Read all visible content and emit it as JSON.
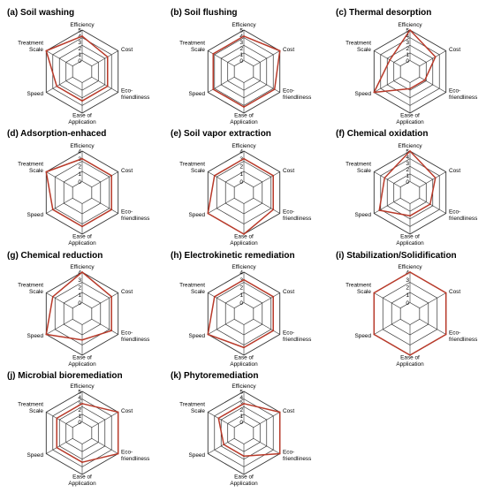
{
  "chart_data": [
    {
      "type": "radar",
      "title": "(a) Soil washing",
      "axes": [
        "Efficiency",
        "Cost",
        "Eco-|friendliness",
        "Ease of|Application",
        "Speed",
        "Treatment|Scale"
      ],
      "ticks": [
        "0",
        "1",
        "2",
        "3",
        "4",
        "5"
      ],
      "range": [
        0,
        5
      ],
      "grid_rings": 4,
      "series": [
        {
          "values": [
            4,
            3,
            3,
            3,
            3,
            5
          ]
        }
      ],
      "colors": {
        "series": "#b83a2a",
        "grid": "#333333"
      }
    },
    {
      "type": "radar",
      "title": "(b) Soil flushing",
      "axes": [
        "Efficiency",
        "Cost",
        "Eco-|friendliness",
        "Ease of|Application",
        "Speed",
        "Treatment|Scale"
      ],
      "ticks": [
        "0",
        "1",
        "2",
        "3",
        "4",
        "5"
      ],
      "range": [
        0,
        5
      ],
      "grid_rings": 4,
      "series": [
        {
          "values": [
            4,
            5,
            4,
            4,
            4,
            4
          ]
        }
      ],
      "colors": {
        "series": "#b83a2a",
        "grid": "#333333"
      }
    },
    {
      "type": "radar",
      "title": "(c) Thermal desorption",
      "axes": [
        "Efficiency",
        "Cost",
        "Eco-|friendliness",
        "Ease of|Application",
        "Speed",
        "Treatment|Scale"
      ],
      "ticks": [
        "0",
        "1",
        "2",
        "3",
        "4",
        "5"
      ],
      "range": [
        0,
        5
      ],
      "grid_rings": 4,
      "series": [
        {
          "values": [
            5,
            3,
            1,
            1,
            5,
            2
          ]
        }
      ],
      "colors": {
        "series": "#b83a2a",
        "grid": "#333333"
      }
    },
    {
      "type": "radar",
      "title": "(d) Adsorption-enhaced",
      "axes": [
        "Efficiency",
        "Cost",
        "Eco-|friendliness",
        "Ease of|Application",
        "Speed",
        "Treatment|Scale"
      ],
      "ticks": [
        "0",
        "1",
        "2",
        "3",
        "4"
      ],
      "range": [
        0,
        4
      ],
      "grid_rings": 3,
      "series": [
        {
          "values": [
            3,
            3,
            3,
            3,
            3,
            4
          ]
        }
      ],
      "colors": {
        "series": "#b83a2a",
        "grid": "#333333"
      }
    },
    {
      "type": "radar",
      "title": "(e) Soil vapor extraction",
      "axes": [
        "Efficiency",
        "Cost",
        "Eco-|friendliness",
        "Ease of|Application",
        "Speed",
        "Treatment|Scale"
      ],
      "ticks": [
        "0",
        "1",
        "2",
        "3",
        "4"
      ],
      "range": [
        0,
        4
      ],
      "grid_rings": 3,
      "series": [
        {
          "values": [
            3,
            3,
            3,
            4,
            4,
            3
          ]
        }
      ],
      "colors": {
        "series": "#b83a2a",
        "grid": "#333333"
      }
    },
    {
      "type": "radar",
      "title": "(f) Chemical oxidation",
      "axes": [
        "Efficiency",
        "Cost",
        "Eco-|friendliness",
        "Ease of|Application",
        "Speed",
        "Treatment|Scale"
      ],
      "ticks": [
        "0",
        "1",
        "2",
        "3",
        "4",
        "5"
      ],
      "range": [
        0,
        5
      ],
      "grid_rings": 4,
      "series": [
        {
          "values": [
            5,
            3,
            2,
            2,
            4,
            3
          ]
        }
      ],
      "colors": {
        "series": "#b83a2a",
        "grid": "#333333"
      }
    },
    {
      "type": "radar",
      "title": "(g) Chemical reduction",
      "axes": [
        "Efficiency",
        "Cost",
        "Eco-|friendliness",
        "Ease of|Application",
        "Speed",
        "Treatment|Scale"
      ],
      "ticks": [
        "0",
        "1",
        "2",
        "3",
        "4"
      ],
      "range": [
        0,
        4
      ],
      "grid_rings": 3,
      "series": [
        {
          "values": [
            4,
            3,
            3,
            2,
            4,
            3
          ]
        }
      ],
      "colors": {
        "series": "#b83a2a",
        "grid": "#333333"
      }
    },
    {
      "type": "radar",
      "title": "(h) Electrokinetic remediation",
      "axes": [
        "Efficiency",
        "Cost",
        "Eco-|friendliness",
        "Ease of|Application",
        "Speed",
        "Treatment|Scale"
      ],
      "ticks": [
        "0",
        "1",
        "2",
        "3",
        "4"
      ],
      "range": [
        0,
        4
      ],
      "grid_rings": 3,
      "series": [
        {
          "values": [
            3,
            3,
            3,
            3,
            4,
            3
          ]
        }
      ],
      "colors": {
        "series": "#b83a2a",
        "grid": "#333333"
      }
    },
    {
      "type": "radar",
      "title": "(i) Stabilization/Solidification",
      "axes": [
        "Efficiency",
        "Cost",
        "Eco-|friendliness",
        "Ease of|Application",
        "Speed",
        "Treatment|Scale"
      ],
      "ticks": [
        "0",
        "1",
        "2",
        "3",
        "4"
      ],
      "range": [
        0,
        4
      ],
      "grid_rings": 3,
      "series": [
        {
          "values": [
            4,
            4,
            4,
            4,
            4,
            4
          ]
        }
      ],
      "colors": {
        "series": "#b83a2a",
        "grid": "#333333"
      }
    },
    {
      "type": "radar",
      "title": "(j) Microbial bioremediation",
      "axes": [
        "Efficiency",
        "Cost",
        "Eco-|friendliness",
        "Ease of|Application",
        "Speed",
        "Treatment|Scale"
      ],
      "ticks": [
        "0",
        "1",
        "2",
        "3",
        "4",
        "5"
      ],
      "range": [
        0,
        5
      ],
      "grid_rings": 4,
      "series": [
        {
          "values": [
            3,
            5,
            5,
            3,
            3,
            3
          ]
        }
      ],
      "colors": {
        "series": "#b83a2a",
        "grid": "#333333"
      }
    },
    {
      "type": "radar",
      "title": "(k) Phytoremediation",
      "axes": [
        "Efficiency",
        "Cost",
        "Eco-|friendliness",
        "Ease of|Application",
        "Speed",
        "Treatment|Scale"
      ],
      "ticks": [
        "0",
        "1",
        "2",
        "3",
        "4",
        "5"
      ],
      "range": [
        0,
        5
      ],
      "grid_rings": 4,
      "series": [
        {
          "values": [
            3,
            5,
            5,
            2,
            2,
            3
          ]
        }
      ],
      "colors": {
        "series": "#b83a2a",
        "grid": "#333333"
      }
    }
  ]
}
